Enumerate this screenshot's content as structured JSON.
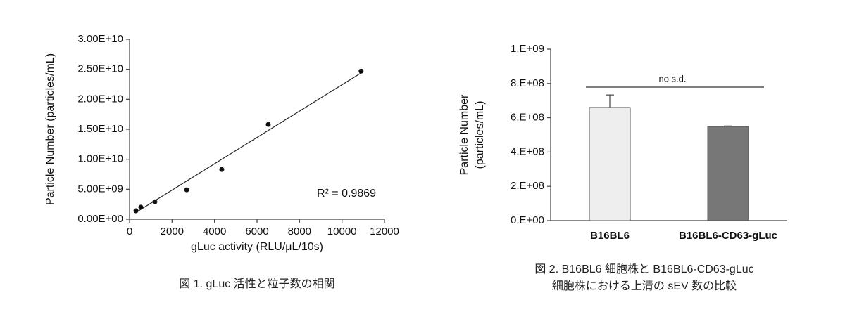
{
  "chart_data": [
    {
      "type": "scatter",
      "x": [
        300,
        530,
        1190,
        2690,
        4340,
        6530,
        10900
      ],
      "values": [
        1400000000,
        2000000000,
        2900000000,
        4900000000,
        8300000000,
        15800000000,
        24700000000
      ],
      "color": "#111111",
      "trendline": {
        "x": [
          265,
          10900
        ],
        "y": [
          1050000000,
          24400000000
        ]
      },
      "annotation": "R² = 0.9869",
      "xlabel": "gLuc activity (RLU/μL/10s)",
      "ylabel": [
        "Particle Number (particles/mL)"
      ],
      "xlim": [
        0,
        12000
      ],
      "xticks": [
        0,
        2000,
        4000,
        6000,
        8000,
        10000,
        12000
      ],
      "ylim": [
        0,
        30000000000
      ],
      "yticks": [
        {
          "value": 0,
          "label": "0.00E+00"
        },
        {
          "value": 5000000000,
          "label": "5.00E+09"
        },
        {
          "value": 10000000000,
          "label": "1.00E+10"
        },
        {
          "value": 15000000000,
          "label": "1.50E+10"
        },
        {
          "value": 20000000000,
          "label": "2.00E+10"
        },
        {
          "value": 25000000000,
          "label": "2.50E+10"
        },
        {
          "value": 30000000000,
          "label": "3.00E+10"
        }
      ],
      "caption": [
        "図 1. gLuc 活性と粒子数の相関"
      ]
    },
    {
      "type": "bar",
      "categories": [
        "B16BL6",
        "B16BL6-CD63-gLuc"
      ],
      "values": [
        660000000,
        549000000
      ],
      "errors": [
        73000000,
        3000000
      ],
      "colors": [
        "#eeeeee",
        "#777777"
      ],
      "annotation": "no s.d.",
      "ylabel": [
        "Particle Number",
        "(particles/mL)"
      ],
      "ylim": [
        0,
        1000000000
      ],
      "yticks": [
        {
          "value": 0,
          "label": "0.E+00"
        },
        {
          "value": 200000000,
          "label": "2.E+08"
        },
        {
          "value": 400000000,
          "label": "4.E+08"
        },
        {
          "value": 600000000,
          "label": "6.E+08"
        },
        {
          "value": 800000000,
          "label": "8.E+08"
        },
        {
          "value": 1000000000,
          "label": "1.E+09"
        }
      ],
      "caption": [
        "図 2. B16BL6 細胞株と B16BL6-CD63-gLuc",
        "細胞株における上清の sEV 数の比較"
      ]
    }
  ]
}
